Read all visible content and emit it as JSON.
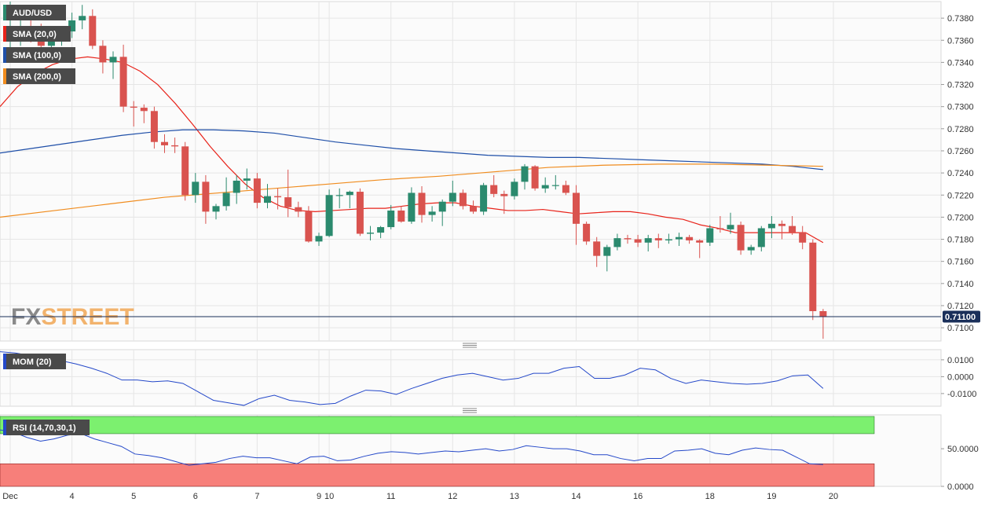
{
  "colors": {
    "up": "#2b8a6e",
    "down": "#d9534f",
    "sma20": "#e8231a",
    "sma100": "#1f4fa8",
    "sma200": "#f08c1e",
    "mom": "#2448c9",
    "rsi": "#2448c9",
    "rsi_overbought_fill": "#7cf06f",
    "rsi_oversold_fill": "#f77f7a",
    "price_line": "#1a2f5a",
    "tag_bg": "#4a4a4a",
    "grid": "#e6e6e6"
  },
  "watermark": {
    "fx": "FX",
    "street": "STREET"
  },
  "indicators": {
    "symbol": "AUD/USD",
    "sma20": "SMA (20,0)",
    "sma100": "SMA (100,0)",
    "sma200": "SMA (200,0)",
    "mom": "MOM (20)",
    "rsi": "RSI (14,70,30,1)"
  },
  "current_price_label": "0.71100",
  "chart_data": [
    {
      "type": "candlestick",
      "pair": "AUD/USD",
      "ylim": [
        0.7088,
        0.7395
      ],
      "yticks": [
        "0.7380",
        "0.7360",
        "0.7340",
        "0.7320",
        "0.7300",
        "0.7280",
        "0.7260",
        "0.7240",
        "0.7220",
        "0.7200",
        "0.7180",
        "0.7160",
        "0.7140",
        "0.7120",
        "0.7100"
      ],
      "yticks_values": [
        0.738,
        0.736,
        0.734,
        0.732,
        0.73,
        0.728,
        0.726,
        0.724,
        0.722,
        0.72,
        0.718,
        0.716,
        0.714,
        0.712,
        0.71
      ],
      "x_labels": [
        {
          "i": 0,
          "label": "Dec"
        },
        {
          "i": 6,
          "label": "4"
        },
        {
          "i": 12,
          "label": "5"
        },
        {
          "i": 18,
          "label": "6"
        },
        {
          "i": 24,
          "label": "7"
        },
        {
          "i": 30,
          "label": "9"
        },
        {
          "i": 31,
          "label": "10"
        },
        {
          "i": 37,
          "label": "11"
        },
        {
          "i": 43,
          "label": "12"
        },
        {
          "i": 49,
          "label": "13"
        },
        {
          "i": 55,
          "label": "14"
        },
        {
          "i": 61,
          "label": "16"
        },
        {
          "i": 68,
          "label": "18"
        },
        {
          "i": 74,
          "label": "19"
        },
        {
          "i": 80,
          "label": "20"
        }
      ],
      "candles": [
        [
          0.736,
          0.7395,
          0.735,
          0.737
        ],
        [
          0.737,
          0.738,
          0.7355,
          0.7372
        ],
        [
          0.7372,
          0.7385,
          0.7358,
          0.7365
        ],
        [
          0.7365,
          0.7375,
          0.735,
          0.7355
        ],
        [
          0.7355,
          0.7365,
          0.7348,
          0.736
        ],
        [
          0.736,
          0.7372,
          0.7355,
          0.7368
        ],
        [
          0.7368,
          0.7385,
          0.7362,
          0.7378
        ],
        [
          0.7378,
          0.7392,
          0.737,
          0.7382
        ],
        [
          0.7382,
          0.7388,
          0.7352,
          0.7355
        ],
        [
          0.7355,
          0.736,
          0.733,
          0.734
        ],
        [
          0.734,
          0.735,
          0.7325,
          0.7345
        ],
        [
          0.7345,
          0.7356,
          0.7295,
          0.73
        ],
        [
          0.73,
          0.7305,
          0.7282,
          0.7299
        ],
        [
          0.7299,
          0.7302,
          0.7285,
          0.7296
        ],
        [
          0.7296,
          0.73,
          0.7262,
          0.7268
        ],
        [
          0.7268,
          0.7275,
          0.7258,
          0.7265
        ],
        [
          0.7265,
          0.7272,
          0.7258,
          0.7264
        ],
        [
          0.7264,
          0.7268,
          0.7215,
          0.722
        ],
        [
          0.722,
          0.724,
          0.7213,
          0.7232
        ],
        [
          0.7232,
          0.7238,
          0.7194,
          0.7205
        ],
        [
          0.7205,
          0.7212,
          0.7198,
          0.721
        ],
        [
          0.721,
          0.7236,
          0.7206,
          0.7222
        ],
        [
          0.7222,
          0.7238,
          0.7212,
          0.7233
        ],
        [
          0.7233,
          0.7244,
          0.7225,
          0.7235
        ],
        [
          0.7235,
          0.724,
          0.7208,
          0.7213
        ],
        [
          0.7213,
          0.723,
          0.7208,
          0.7219
        ],
        [
          0.7219,
          0.7226,
          0.7207,
          0.7218
        ],
        [
          0.7218,
          0.7243,
          0.72,
          0.7209
        ],
        [
          0.7209,
          0.7214,
          0.72,
          0.7205
        ],
        [
          0.7205,
          0.721,
          0.7177,
          0.7178
        ],
        [
          0.7178,
          0.7186,
          0.7174,
          0.7183
        ],
        [
          0.7183,
          0.7225,
          0.7182,
          0.722
        ],
        [
          0.722,
          0.7226,
          0.7208,
          0.722
        ],
        [
          0.722,
          0.7224,
          0.7208,
          0.7223
        ],
        [
          0.7223,
          0.7226,
          0.7183,
          0.7185
        ],
        [
          0.7185,
          0.7192,
          0.7179,
          0.7186
        ],
        [
          0.7186,
          0.7192,
          0.7181,
          0.7191
        ],
        [
          0.7191,
          0.7211,
          0.7189,
          0.7206
        ],
        [
          0.7206,
          0.721,
          0.7195,
          0.7196
        ],
        [
          0.7196,
          0.7227,
          0.7194,
          0.7222
        ],
        [
          0.7222,
          0.7228,
          0.7195,
          0.7202
        ],
        [
          0.7202,
          0.721,
          0.7196,
          0.7205
        ],
        [
          0.7205,
          0.7216,
          0.7192,
          0.7214
        ],
        [
          0.7214,
          0.7233,
          0.721,
          0.7222
        ],
        [
          0.7222,
          0.7225,
          0.7207,
          0.721
        ],
        [
          0.721,
          0.7215,
          0.7203,
          0.7205
        ],
        [
          0.7205,
          0.7231,
          0.7202,
          0.7229
        ],
        [
          0.7229,
          0.7238,
          0.7218,
          0.7221
        ],
        [
          0.7221,
          0.7224,
          0.7203,
          0.7219
        ],
        [
          0.7219,
          0.7235,
          0.7216,
          0.7232
        ],
        [
          0.7232,
          0.7248,
          0.7225,
          0.7246
        ],
        [
          0.7246,
          0.7247,
          0.7224,
          0.7226
        ],
        [
          0.7226,
          0.7236,
          0.7222,
          0.7229
        ],
        [
          0.7229,
          0.7238,
          0.7225,
          0.7229
        ],
        [
          0.7229,
          0.7233,
          0.722,
          0.7222
        ],
        [
          0.7222,
          0.7229,
          0.7175,
          0.7194
        ],
        [
          0.7194,
          0.7196,
          0.7175,
          0.7178
        ],
        [
          0.7178,
          0.7182,
          0.7155,
          0.7165
        ],
        [
          0.7165,
          0.7175,
          0.7151,
          0.7173
        ],
        [
          0.7173,
          0.7185,
          0.717,
          0.7181
        ],
        [
          0.7181,
          0.7184,
          0.7176,
          0.718
        ],
        [
          0.718,
          0.7184,
          0.7173,
          0.7177
        ],
        [
          0.7177,
          0.7184,
          0.7169,
          0.7181
        ],
        [
          0.7181,
          0.7185,
          0.7172,
          0.7179
        ],
        [
          0.7179,
          0.7185,
          0.7176,
          0.718
        ],
        [
          0.718,
          0.7186,
          0.7174,
          0.7182
        ],
        [
          0.7182,
          0.7184,
          0.7176,
          0.7179
        ],
        [
          0.7179,
          0.718,
          0.7163,
          0.7177
        ],
        [
          0.7177,
          0.7193,
          0.7174,
          0.719
        ],
        [
          0.719,
          0.7201,
          0.7186,
          0.7189
        ],
        [
          0.7189,
          0.7204,
          0.7185,
          0.7193
        ],
        [
          0.7193,
          0.7196,
          0.7166,
          0.717
        ],
        [
          0.717,
          0.7175,
          0.7166,
          0.7173
        ],
        [
          0.7173,
          0.7192,
          0.7169,
          0.719
        ],
        [
          0.719,
          0.7201,
          0.7181,
          0.7194
        ],
        [
          0.7194,
          0.7197,
          0.718,
          0.7192
        ],
        [
          0.7192,
          0.7201,
          0.7184,
          0.7186
        ],
        [
          0.7186,
          0.7192,
          0.7171,
          0.7177
        ],
        [
          0.7177,
          0.718,
          0.7107,
          0.7115
        ],
        [
          0.7115,
          0.7117,
          0.709,
          0.711
        ]
      ],
      "current_price": 0.711,
      "sma20": [
        0.73,
        0.7318,
        0.733,
        0.7338,
        0.7343,
        0.7345,
        0.7343,
        0.734,
        0.7332,
        0.732,
        0.7303,
        0.7284,
        0.7264,
        0.7246,
        0.723,
        0.7218,
        0.721,
        0.7206,
        0.7205,
        0.7206,
        0.7207,
        0.7208,
        0.7208,
        0.721,
        0.7212,
        0.7213,
        0.7213,
        0.721,
        0.7208,
        0.7206,
        0.7206,
        0.7207,
        0.7205,
        0.7203,
        0.7204,
        0.7205,
        0.7205,
        0.7203,
        0.72,
        0.7198,
        0.7193,
        0.719,
        0.7186,
        0.7186,
        0.7186,
        0.7186,
        0.7186,
        0.7177
      ],
      "sma20_start_x": 0.73,
      "sma100": [
        0.7258,
        0.7262,
        0.7266,
        0.727,
        0.7274,
        0.7277,
        0.7279,
        0.7279,
        0.7278,
        0.7276,
        0.7272,
        0.7268,
        0.7265,
        0.7262,
        0.726,
        0.7258,
        0.7256,
        0.7255,
        0.7254,
        0.7254,
        0.7253,
        0.7252,
        0.7251,
        0.725,
        0.7249,
        0.7248,
        0.7246,
        0.7243
      ],
      "sma200": [
        0.72,
        0.7206,
        0.7212,
        0.7218,
        0.7222,
        0.7226,
        0.723,
        0.7234,
        0.7237,
        0.7241,
        0.7245,
        0.7247,
        0.7248,
        0.7248,
        0.7247,
        0.7246
      ],
      "mom": {
        "ylim": [
          -0.0175,
          0.016
        ],
        "yticks": [
          "0.0100",
          "0.0000",
          "-0.0100"
        ],
        "yticks_values": [
          0.01,
          0.0,
          -0.01
        ],
        "values": [
          0.0148,
          0.014,
          0.0125,
          0.011,
          0.0095,
          0.0075,
          0.005,
          0.002,
          -0.002,
          -0.002,
          -0.003,
          -0.0025,
          -0.004,
          -0.009,
          -0.014,
          -0.0155,
          -0.017,
          -0.013,
          -0.011,
          -0.014,
          -0.015,
          -0.0165,
          -0.0158,
          -0.0115,
          -0.008,
          -0.0085,
          -0.0105,
          -0.007,
          -0.004,
          -0.001,
          0.001,
          0.002,
          0.0,
          -0.002,
          -0.001,
          0.002,
          0.002,
          0.005,
          0.006,
          -0.001,
          -0.001,
          0.001,
          0.005,
          0.004,
          -0.001,
          -0.004,
          -0.002,
          -0.003,
          -0.004,
          -0.0045,
          -0.004,
          -0.0025,
          0.0005,
          0.001,
          -0.007
        ],
        "last": -0.007
      },
      "rsi": {
        "ylim": [
          0,
          95
        ],
        "yticks": [
          "50.0000",
          "0.0000"
        ],
        "yticks_values": [
          50,
          0
        ],
        "overbought": 70,
        "oversold": 30,
        "values": [
          75,
          72,
          65,
          60,
          63,
          68,
          70,
          63,
          58,
          53,
          43,
          41,
          38,
          33,
          28,
          30,
          32,
          37,
          40,
          38,
          38,
          34,
          30,
          39,
          40,
          34,
          35,
          40,
          44,
          46,
          45,
          43,
          45,
          47,
          46,
          48,
          50,
          47,
          49,
          54,
          52,
          50,
          50,
          47,
          42,
          42,
          37,
          34,
          37,
          37,
          47,
          48,
          50,
          44,
          42,
          48,
          51,
          49,
          48,
          39,
          30,
          29
        ]
      }
    }
  ]
}
